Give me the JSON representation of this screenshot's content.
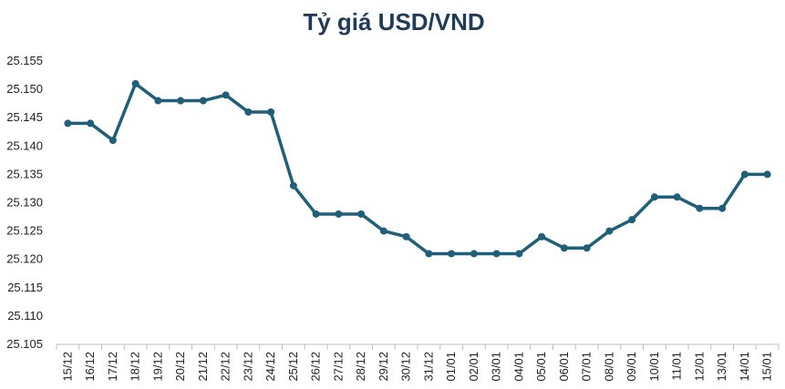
{
  "chart_data": {
    "type": "line",
    "title": "Tỷ giá USD/VND",
    "xlabel": "",
    "ylabel": "",
    "ylim": [
      25.105,
      25.155
    ],
    "yticks": [
      "25.105",
      "25.110",
      "25.115",
      "25.120",
      "25.125",
      "25.130",
      "25.135",
      "25.140",
      "25.145",
      "25.150",
      "25.155"
    ],
    "grid": false,
    "legend": "none",
    "line_color": "#1f5f7a",
    "categories": [
      "15/12",
      "16/12",
      "17/12",
      "18/12",
      "19/12",
      "20/12",
      "21/12",
      "22/12",
      "23/12",
      "24/12",
      "25/12",
      "26/12",
      "27/12",
      "28/12",
      "29/12",
      "30/12",
      "31/12",
      "01/01",
      "02/01",
      "03/01",
      "04/01",
      "05/01",
      "06/01",
      "07/01",
      "08/01",
      "09/01",
      "10/01",
      "11/01",
      "12/01",
      "13/01",
      "14/01",
      "15/01"
    ],
    "series": [
      {
        "values": [
          25.144,
          25.144,
          25.141,
          25.151,
          25.148,
          25.148,
          25.148,
          25.149,
          25.146,
          25.146,
          25.133,
          25.128,
          25.128,
          25.128,
          25.125,
          25.124,
          25.121,
          25.121,
          25.121,
          25.121,
          25.121,
          25.124,
          25.122,
          25.122,
          25.125,
          25.127,
          25.131,
          25.131,
          25.129,
          25.129,
          25.135,
          25.135
        ]
      }
    ]
  }
}
